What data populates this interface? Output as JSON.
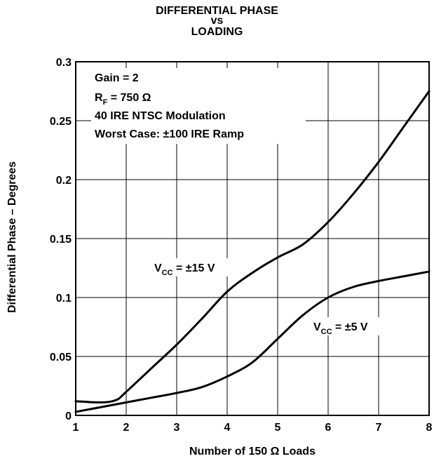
{
  "chart_data": {
    "type": "line",
    "title": "DIFFERENTIAL PHASE",
    "title_line2": "vs",
    "title_line3": "LOADING",
    "xlabel": "Number of 150 Ω Loads",
    "ylabel": "Differential Phase – Degrees",
    "xlim": [
      1,
      8
    ],
    "ylim": [
      0,
      0.3
    ],
    "x_ticks": [
      "1",
      "2",
      "3",
      "4",
      "5",
      "6",
      "7",
      "8"
    ],
    "y_ticks": [
      "0",
      "0.05",
      "0.1",
      "0.15",
      "0.2",
      "0.25",
      "0.3"
    ],
    "grid": true,
    "conditions": [
      "Gain = 2",
      "R_F = 750 Ω",
      "40 IRE NTSC Modulation",
      "Worst Case: ±100 IRE Ramp"
    ],
    "series": [
      {
        "name": "V_CC = ±15 V",
        "x": [
          1,
          1.5,
          1.8,
          2,
          2.5,
          3,
          3.5,
          4,
          4.5,
          5,
          5.5,
          6,
          6.5,
          7,
          7.5,
          8
        ],
        "y": [
          0.012,
          0.011,
          0.013,
          0.02,
          0.04,
          0.06,
          0.082,
          0.105,
          0.121,
          0.134,
          0.145,
          0.164,
          0.188,
          0.215,
          0.245,
          0.275
        ]
      },
      {
        "name": "V_CC = ±5 V",
        "x": [
          1,
          1.5,
          2,
          2.5,
          3,
          3.5,
          4,
          4.5,
          5,
          5.5,
          6,
          6.5,
          7,
          7.5,
          8
        ],
        "y": [
          0.003,
          0.007,
          0.011,
          0.015,
          0.019,
          0.024,
          0.033,
          0.045,
          0.065,
          0.085,
          0.1,
          0.109,
          0.114,
          0.118,
          0.122
        ]
      }
    ]
  }
}
